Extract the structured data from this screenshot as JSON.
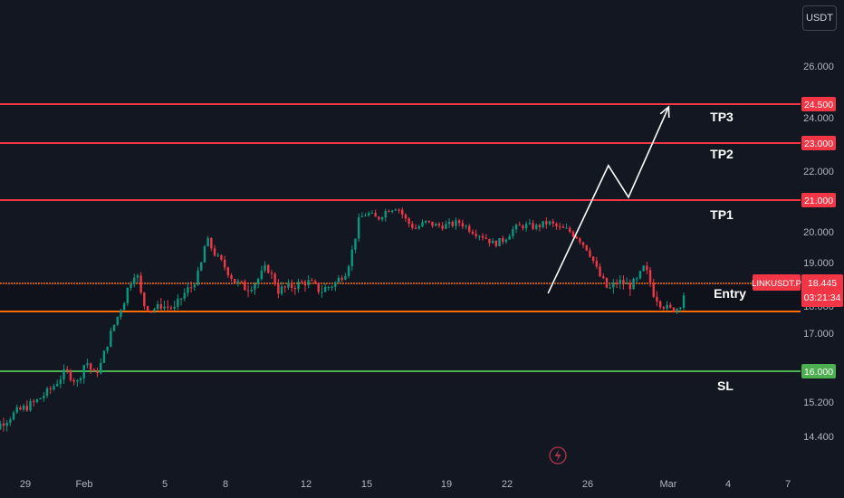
{
  "header": {
    "currency_label": "USDT"
  },
  "chart_data": {
    "type": "candlestick",
    "symbol": "LINKUSDT.P",
    "last_price": "18.445",
    "countdown": "03:21:34",
    "y_ticks": [
      "26.000",
      "24.000",
      "22.000",
      "20.000",
      "19.000",
      "18.000",
      "17.000",
      "15.200",
      "14.400"
    ],
    "x_ticks": [
      "29",
      "Feb",
      "5",
      "8",
      "12",
      "15",
      "19",
      "22",
      "26",
      "Mar",
      "4",
      "7"
    ],
    "levels": [
      {
        "name": "TP3",
        "price": 24.5,
        "label": "24.500",
        "color": "#f23645"
      },
      {
        "name": "TP2",
        "price": 23.0,
        "label": "23.000",
        "color": "#f23645"
      },
      {
        "name": "TP1",
        "price": 21.0,
        "label": "21.000",
        "color": "#f23645"
      },
      {
        "name": "Entry",
        "price": 18.445,
        "label": "",
        "color": "#ff6d00"
      },
      {
        "name": "",
        "price": 17.8,
        "label": "",
        "color": "#ff6d00"
      },
      {
        "name": "SL",
        "price": 16.0,
        "label": "16.000",
        "color": "#4caf50"
      }
    ],
    "zone_names": [
      "TP3",
      "TP2",
      "TP1",
      "Entry",
      "SL"
    ],
    "projection": [
      {
        "date": "Feb 24",
        "price": 18.25
      },
      {
        "date": "Feb 27",
        "price": 22.2
      },
      {
        "date": "Feb 28",
        "price": 21.1
      },
      {
        "date": "Mar 1",
        "price": 24.4
      }
    ],
    "colors": {
      "up": "#089981",
      "down": "#f23645",
      "background": "#131722",
      "axis_text": "#b2b5be"
    }
  }
}
